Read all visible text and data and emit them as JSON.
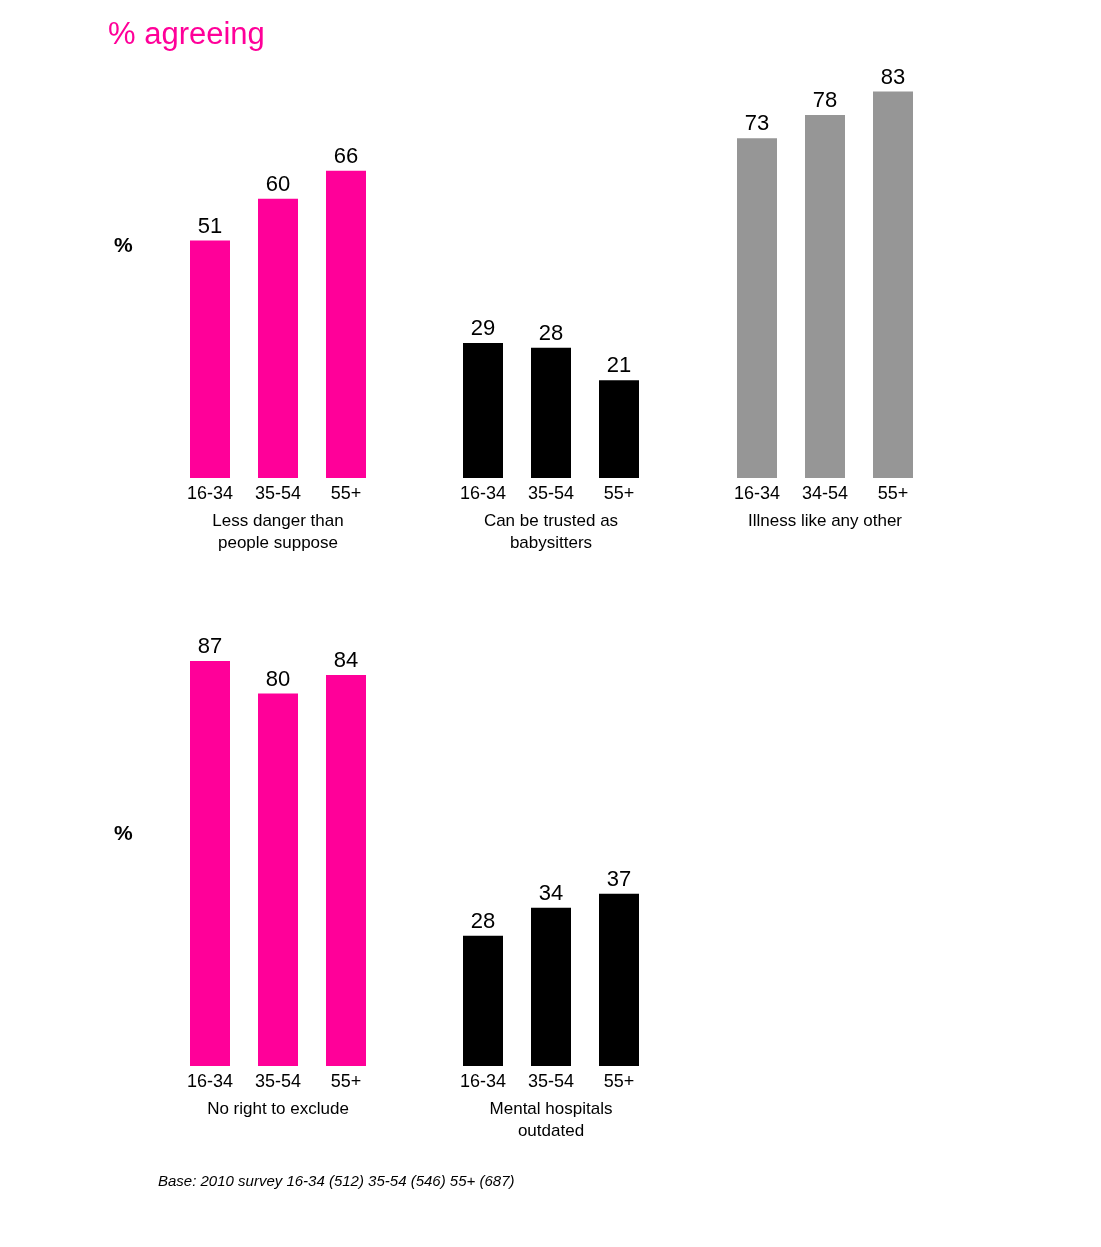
{
  "chart_data": [
    {
      "type": "bar",
      "title": "% agreeing",
      "ylabel": "%",
      "xlabel": "Less danger than people suppose",
      "categories": [
        "16-34",
        "35-54",
        "55+"
      ],
      "values": [
        51,
        60,
        66
      ],
      "color": "#ff0099",
      "tick_labels": "x",
      "data_labels": true,
      "grid": false,
      "legend": false
    },
    {
      "type": "bar",
      "xlabel": "Can be trusted as babysitters",
      "categories": [
        "16-34",
        "35-54",
        "55+"
      ],
      "values": [
        29,
        28,
        21
      ],
      "color": "#000000",
      "tick_labels": "x",
      "data_labels": true,
      "grid": false,
      "legend": false
    },
    {
      "type": "bar",
      "xlabel": "Illness like any other",
      "categories": [
        "16-34",
        "34-54",
        "55+"
      ],
      "values": [
        73,
        78,
        83
      ],
      "color": "#969696",
      "tick_labels": "x",
      "data_labels": true,
      "grid": false,
      "legend": false
    },
    {
      "type": "bar",
      "ylabel": "%",
      "xlabel": "No right to exclude",
      "categories": [
        "16-34",
        "35-54",
        "55+"
      ],
      "values": [
        87,
        80,
        84
      ],
      "color": "#ff0099",
      "tick_labels": "x",
      "data_labels": true,
      "grid": false,
      "legend": false
    },
    {
      "type": "bar",
      "xlabel": "Mental hospitals outdated",
      "categories": [
        "16-34",
        "35-54",
        "55+"
      ],
      "values": [
        28,
        34,
        37
      ],
      "color": "#000000",
      "tick_labels": "x",
      "data_labels": true,
      "grid": false,
      "legend": false,
      "annotations": [
        "Base: 2010 survey 16-34 (512) 35-54 (546) 55+ (687)"
      ]
    }
  ]
}
